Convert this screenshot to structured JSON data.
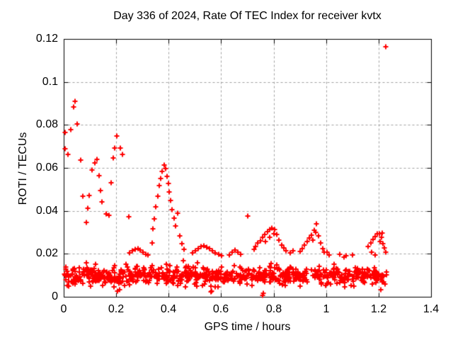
{
  "chart_data": {
    "type": "scatter",
    "title": "Day 336 of 2024, Rate Of TEC Index for receiver kvtx",
    "xlabel": "GPS time / hours",
    "ylabel": "ROTI / TECUs",
    "xlim": [
      0,
      1.4
    ],
    "ylim": [
      0,
      0.12
    ],
    "xtick_values": [
      0,
      0.2,
      0.4,
      0.6,
      0.8,
      1.0,
      1.2,
      1.4
    ],
    "xtick_labels": [
      "0",
      "0.2",
      "0.4",
      "0.6",
      "0.8",
      "1",
      "1.2",
      "1.4"
    ],
    "ytick_values": [
      0,
      0.02,
      0.04,
      0.06,
      0.08,
      0.1,
      0.12
    ],
    "ytick_labels": [
      "0",
      "0.02",
      "0.04",
      "0.06",
      "0.08",
      "0.1",
      "0.12"
    ],
    "grid": true,
    "grid_style": "dashed",
    "grid_color": "#a0a0a0",
    "axis_color": "#000000",
    "background": "#ffffff",
    "legend": "none",
    "marker": {
      "symbol": "plus",
      "color": "#ff0000",
      "size": 7,
      "stroke": 2
    },
    "feature_points": [
      [
        0.005,
        0.0765
      ],
      [
        0.005,
        0.069
      ],
      [
        0.016,
        0.0663
      ],
      [
        0.027,
        0.0778
      ],
      [
        0.038,
        0.0884
      ],
      [
        0.043,
        0.091
      ],
      [
        0.051,
        0.0804
      ],
      [
        0.064,
        0.0636
      ],
      [
        0.072,
        0.0467
      ],
      [
        0.086,
        0.0347
      ],
      [
        0.091,
        0.0412
      ],
      [
        0.097,
        0.047
      ],
      [
        0.107,
        0.0591
      ],
      [
        0.118,
        0.0623
      ],
      [
        0.126,
        0.0639
      ],
      [
        0.134,
        0.0564
      ],
      [
        0.139,
        0.0493
      ],
      [
        0.145,
        0.0441
      ],
      [
        0.161,
        0.0385
      ],
      [
        0.172,
        0.0379
      ],
      [
        0.182,
        0.0532
      ],
      [
        0.188,
        0.0645
      ],
      [
        0.194,
        0.0691
      ],
      [
        0.202,
        0.0749
      ],
      [
        0.215,
        0.0691
      ],
      [
        0.225,
        0.0662
      ],
      [
        0.247,
        0.0373
      ],
      [
        0.252,
        0.0205
      ],
      [
        0.262,
        0.0213
      ],
      [
        0.272,
        0.0221
      ],
      [
        0.282,
        0.0224
      ],
      [
        0.292,
        0.0219
      ],
      [
        0.302,
        0.0209
      ],
      [
        0.312,
        0.0199
      ],
      [
        0.322,
        0.0193
      ],
      [
        0.336,
        0.0252
      ],
      [
        0.341,
        0.0315
      ],
      [
        0.346,
        0.0363
      ],
      [
        0.352,
        0.0419
      ],
      [
        0.358,
        0.0468
      ],
      [
        0.364,
        0.0516
      ],
      [
        0.37,
        0.0551
      ],
      [
        0.376,
        0.0585
      ],
      [
        0.382,
        0.0612
      ],
      [
        0.388,
        0.0598
      ],
      [
        0.393,
        0.0562
      ],
      [
        0.398,
        0.0528
      ],
      [
        0.403,
        0.0487
      ],
      [
        0.408,
        0.0448
      ],
      [
        0.414,
        0.0407
      ],
      [
        0.42,
        0.0366
      ],
      [
        0.426,
        0.0331
      ],
      [
        0.434,
        0.0389
      ],
      [
        0.443,
        0.0282
      ],
      [
        0.451,
        0.0247
      ],
      [
        0.459,
        0.0222
      ],
      [
        0.49,
        0.0204
      ],
      [
        0.501,
        0.0214
      ],
      [
        0.512,
        0.0225
      ],
      [
        0.523,
        0.0233
      ],
      [
        0.534,
        0.0236
      ],
      [
        0.545,
        0.0231
      ],
      [
        0.556,
        0.0224
      ],
      [
        0.567,
        0.0215
      ],
      [
        0.578,
        0.0206
      ],
      [
        0.59,
        0.0197
      ],
      [
        0.601,
        0.0191
      ],
      [
        0.63,
        0.0196
      ],
      [
        0.641,
        0.0208
      ],
      [
        0.652,
        0.0216
      ],
      [
        0.663,
        0.0209
      ],
      [
        0.674,
        0.0198
      ],
      [
        0.7,
        0.0377
      ],
      [
        0.726,
        0.0221
      ],
      [
        0.731,
        0.0235
      ],
      [
        0.74,
        0.0249
      ],
      [
        0.749,
        0.0262
      ],
      [
        0.758,
        0.0276
      ],
      [
        0.767,
        0.029
      ],
      [
        0.776,
        0.0303
      ],
      [
        0.785,
        0.0313
      ],
      [
        0.794,
        0.032
      ],
      [
        0.803,
        0.0312
      ],
      [
        0.812,
        0.029
      ],
      [
        0.821,
        0.0264
      ],
      [
        0.83,
        0.0242
      ],
      [
        0.839,
        0.0226
      ],
      [
        0.848,
        0.0214
      ],
      [
        0.77,
        0.0258
      ],
      [
        0.786,
        0.0277
      ],
      [
        0.8,
        0.0294
      ],
      [
        0.862,
        0.0205
      ],
      [
        0.874,
        0.0214
      ],
      [
        0.9,
        0.0212
      ],
      [
        0.909,
        0.0224
      ],
      [
        0.918,
        0.0241
      ],
      [
        0.927,
        0.0258
      ],
      [
        0.936,
        0.0272
      ],
      [
        0.945,
        0.0288
      ],
      [
        0.954,
        0.031
      ],
      [
        0.963,
        0.0341
      ],
      [
        0.971,
        0.0282
      ],
      [
        0.979,
        0.0249
      ],
      [
        0.987,
        0.0225
      ],
      [
        0.95,
        0.0265
      ],
      [
        0.96,
        0.03
      ],
      [
        0.994,
        0.0208
      ],
      [
        1.003,
        0.0208
      ],
      [
        1.012,
        0.0196
      ],
      [
        1.052,
        0.0198
      ],
      [
        1.068,
        0.0185
      ],
      [
        1.075,
        0.019
      ],
      [
        1.1,
        0.0195
      ],
      [
        1.174,
        0.0208
      ],
      [
        1.188,
        0.0196
      ],
      [
        1.16,
        0.0235
      ],
      [
        1.17,
        0.0252
      ],
      [
        1.178,
        0.0266
      ],
      [
        1.186,
        0.028
      ],
      [
        1.194,
        0.0293
      ],
      [
        1.202,
        0.0293
      ],
      [
        1.206,
        0.0258
      ],
      [
        1.21,
        0.0276
      ],
      [
        1.214,
        0.0296
      ],
      [
        1.216,
        0.0247
      ],
      [
        1.222,
        0.0226
      ],
      [
        1.228,
        0.0208
      ],
      [
        0.205,
        0.0027
      ],
      [
        0.212,
        0.0032
      ],
      [
        0.56,
        0.0022
      ],
      [
        0.565,
        0.0028
      ],
      [
        0.757,
        0.0008
      ],
      [
        0.762,
        0.0015
      ],
      [
        1.209,
        0.0032
      ],
      [
        1.227,
        0.1163
      ]
    ],
    "noise_band": {
      "description": "dense ROTI noise floor band",
      "count": 760,
      "x_range": [
        0.0,
        1.232
      ],
      "y_base": 0.0035,
      "y_spread": 0.0125,
      "top_fuzz": {
        "prob": 0.1,
        "max": 0.0035
      },
      "bottom_fuzz": {
        "prob": 0.06,
        "max": 0.002
      },
      "seed": 1336
    }
  }
}
